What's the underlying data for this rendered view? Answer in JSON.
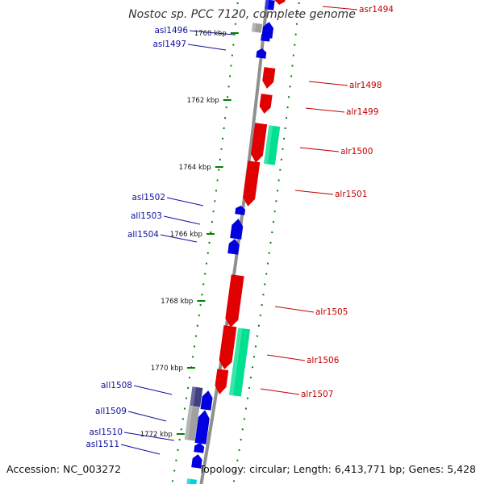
{
  "title": "Nostoc sp. PCC 7120, complete genome",
  "accession": "Accession: NC_003272",
  "summary": "Topology: circular; Length: 6,413,771 bp; Genes: 5,428",
  "colors": {
    "forward_gene": "#e00000",
    "reverse_gene": "#0000e0",
    "forward_feature": "#00e090",
    "reverse_feature": "#a0a0a0",
    "reverse_feature_dark": "#404080",
    "forward_label": "#c00000",
    "reverse_label": "#1010a0",
    "ticks": "#008000",
    "backbone": "#909090"
  },
  "ticks": [
    {
      "label": "1760 kbp"
    },
    {
      "label": "1762 kbp"
    },
    {
      "label": "1764 kbp"
    },
    {
      "label": "1766 kbp"
    },
    {
      "label": "1768 kbp"
    },
    {
      "label": "1770 kbp"
    },
    {
      "label": "1772 kbp"
    }
  ],
  "genes_left": [
    {
      "name": "asl1496"
    },
    {
      "name": "asl1497"
    },
    {
      "name": "asl1502"
    },
    {
      "name": "all1503"
    },
    {
      "name": "all1504"
    },
    {
      "name": "all1508"
    },
    {
      "name": "all1509"
    },
    {
      "name": "asl1510"
    },
    {
      "name": "asl1511"
    }
  ],
  "genes_right": [
    {
      "name": "asr1494"
    },
    {
      "name": "alr1498"
    },
    {
      "name": "alr1499"
    },
    {
      "name": "alr1500"
    },
    {
      "name": "alr1501"
    },
    {
      "name": "alr1505"
    },
    {
      "name": "alr1506"
    },
    {
      "name": "alr1507"
    }
  ]
}
